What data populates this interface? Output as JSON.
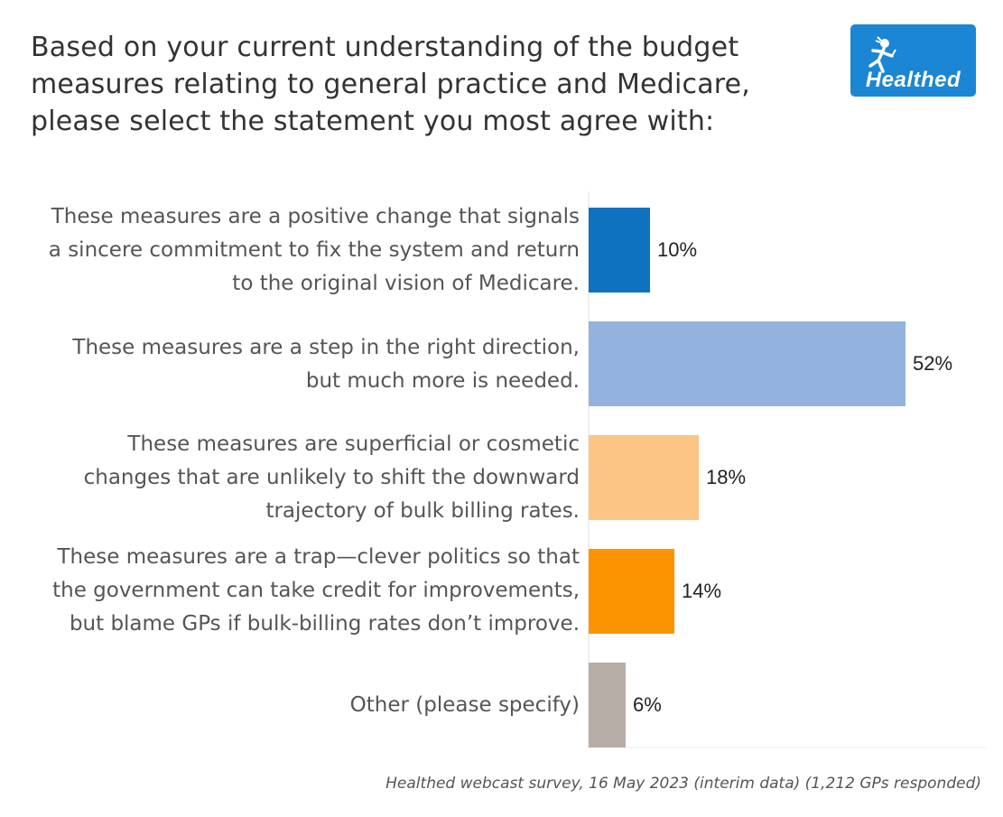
{
  "header": {
    "title_lines": [
      "Based on your current understanding of the budget",
      "measures relating to general practice and Medicare,",
      "please select the statement you most agree with:"
    ]
  },
  "logo": {
    "text": "Healthed",
    "color": "#1b86d3",
    "icon": "hermes-runner-icon"
  },
  "chart_data": {
    "type": "bar",
    "orientation": "horizontal",
    "title": "Based on your current understanding of the budget measures relating to general practice and Medicare, please select the statement you most agree with:",
    "xlim": [
      0,
      61
    ],
    "unit": "%",
    "categories": [
      {
        "lines": [
          "These measures are a positive change that signals",
          "a sincere commitment to fix the system and return",
          "to the original vision of Medicare."
        ],
        "value": 10,
        "label": "10%",
        "color": "#0f72c1"
      },
      {
        "lines": [
          "These measures are a step in the right direction,",
          "but much more is needed."
        ],
        "value": 52,
        "label": "52%",
        "color": "#93b3de"
      },
      {
        "lines": [
          "These measures are superficial or cosmetic",
          "changes that are unlikely to shift the downward",
          "trajectory of bulk billing rates."
        ],
        "value": 18,
        "label": "18%",
        "color": "#fcc585"
      },
      {
        "lines": [
          "These measures are a trap—clever politics so that",
          "the government can take credit for improvements,",
          "but blame GPs if bulk-billing rates don’t improve."
        ],
        "value": 14,
        "label": "14%",
        "color": "#fb9400"
      },
      {
        "lines": [
          "Other (please specify)"
        ],
        "value": 6,
        "label": "6%",
        "color": "#b7ada7"
      }
    ]
  },
  "footnote": "Healthed webcast survey, 16 May 2023 (interim data) (1,212 GPs responded)"
}
